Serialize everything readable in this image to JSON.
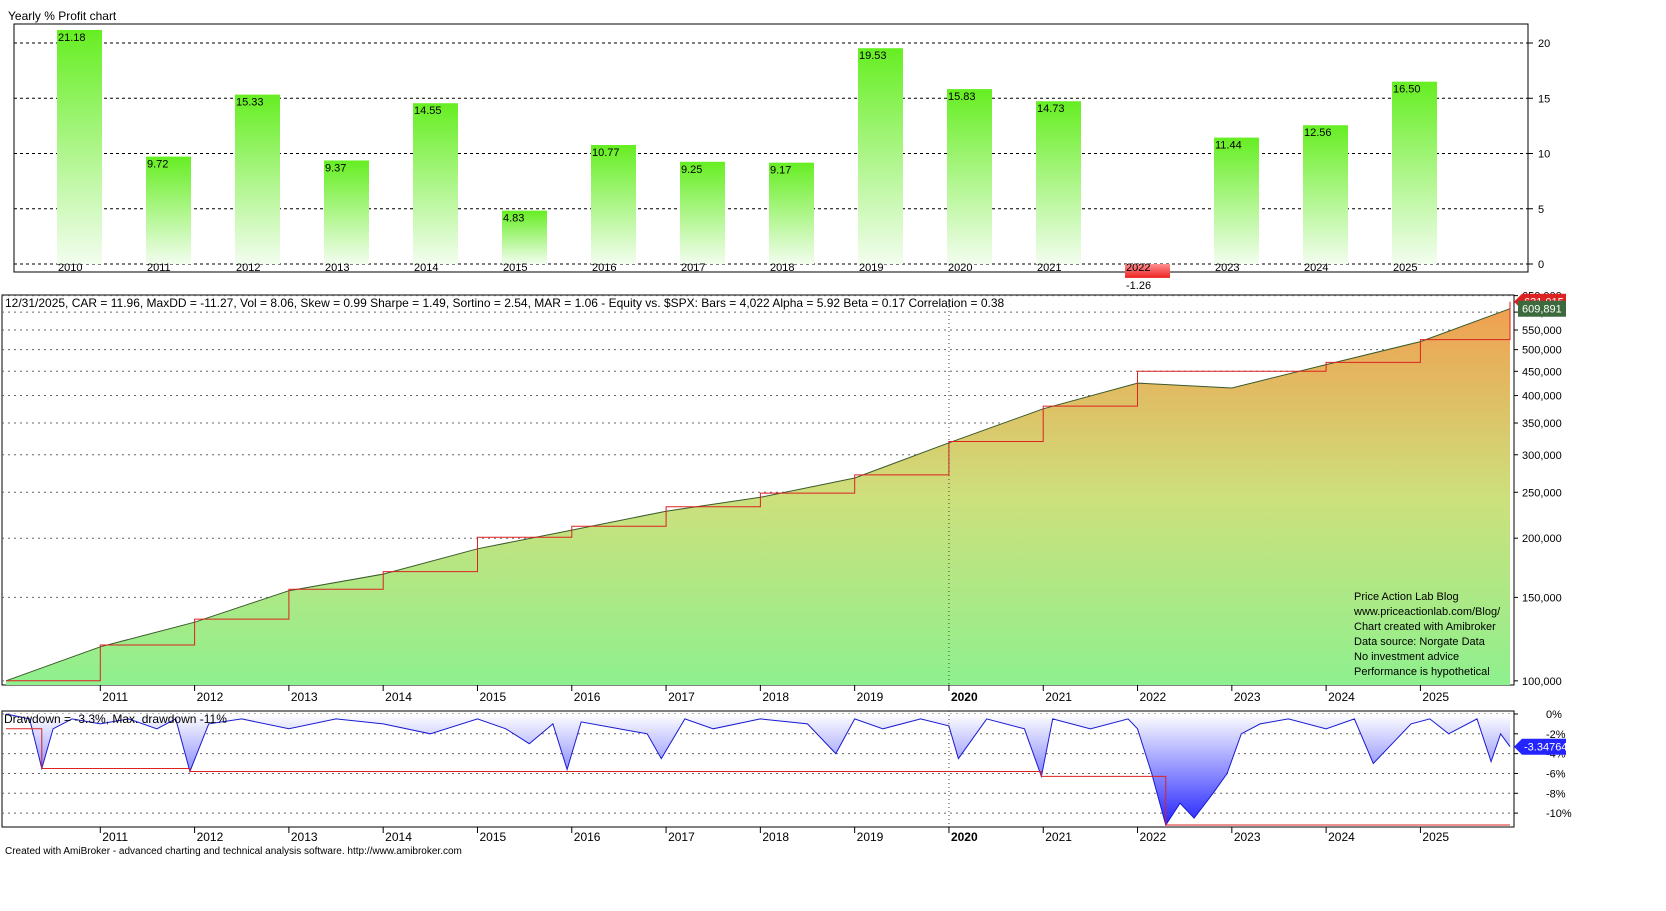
{
  "profit_panel": {
    "title": "Yearly % Profit chart"
  },
  "equity_panel": {
    "title": "12/31/2025, CAR = 11.96, MaxDD = -11.27, Vol = 8.06, Skew = 0.99 Sharpe = 1.49, Sortino = 2.54, MAR = 1.06 - Equity vs. $SPX:  Bars = 4,022 Alpha = 5.92 Beta = 0.17 Correlation = 0.38",
    "notes": [
      "Price Action Lab Blog",
      "www.priceactionlab.com/Blog/",
      "Chart created with Amibroker",
      "Data source: Norgate Data",
      "No investment advice",
      "Performance is hypothetical"
    ]
  },
  "drawdown_panel": {
    "title": "Drawdown = -3.3%, Max. drawdown -11%"
  },
  "footer": {
    "text": "Created with AmiBroker - advanced charting and technical analysis software. http://www.amibroker.com"
  },
  "colors": {
    "positive_bar": "#66ee22",
    "negative_bar": "#ee2222",
    "max_equity": "#dd2222",
    "drawdown_line": "#1a1ad0",
    "grid": "#000000"
  },
  "chart_data": [
    {
      "type": "bar",
      "title": "Yearly % Profit chart",
      "categories": [
        "2010",
        "2011",
        "2012",
        "2013",
        "2014",
        "2015",
        "2016",
        "2017",
        "2018",
        "2019",
        "2020",
        "2021",
        "2022",
        "2023",
        "2024",
        "2025"
      ],
      "values": [
        21.18,
        9.72,
        15.33,
        9.37,
        14.55,
        4.83,
        10.77,
        9.25,
        9.17,
        19.53,
        15.83,
        14.73,
        -1.26,
        11.44,
        12.56,
        16.5
      ],
      "labels": [
        "21.18",
        "9.72",
        "15.33",
        "9.37",
        "14.55",
        "4.83",
        "10.77",
        "9.25",
        "9.17",
        "19.53",
        "15.83",
        "14.73",
        "-1.26",
        "11.44",
        "12.56",
        "16.50"
      ],
      "yticks": [
        0,
        5,
        10,
        15,
        20
      ],
      "ylim": [
        -1,
        21
      ],
      "grid": true
    },
    {
      "type": "area",
      "title": "12/31/2025, CAR = 11.96, MaxDD = -11.27, Vol = 8.06, Skew = 0.99 Sharpe = 1.49, Sortino = 2.54, MAR = 1.06 - Equity vs. $SPX:  Bars = 4,022 Alpha = 5.92 Beta = 0.17 Correlation = 0.38",
      "scale": "log",
      "x": [
        2010.0,
        2011.0,
        2012.0,
        2013.0,
        2014.0,
        2015.0,
        2016.0,
        2017.0,
        2018.0,
        2019.0,
        2020.0,
        2021.0,
        2022.0,
        2023.0,
        2024.0,
        2025.0,
        2025.95
      ],
      "series": [
        {
          "name": "Equity",
          "values": [
            100000,
            118000,
            133000,
            155000,
            168000,
            190000,
            208000,
            228000,
            244000,
            268000,
            318000,
            375000,
            425000,
            415000,
            465000,
            520000,
            609891
          ]
        },
        {
          "name": "Max equity",
          "values": [
            100000,
            119000,
            135000,
            156000,
            170000,
            201000,
            212000,
            233000,
            249000,
            272000,
            320000,
            380000,
            450000,
            450000,
            470000,
            525000,
            631015
          ]
        }
      ],
      "last_value_labels": [
        "631,015",
        "609,891"
      ],
      "yticks": [
        "100,000",
        "150,000",
        "200,000",
        "250,000",
        "300,000",
        "350,000",
        "400,000",
        "450,000",
        "500,000",
        "550,000",
        "600,000",
        "650,000"
      ],
      "ytick_values": [
        100000,
        150000,
        200000,
        250000,
        300000,
        350000,
        400000,
        450000,
        500000,
        550000,
        600000,
        650000
      ],
      "ylim": [
        98000,
        652000
      ],
      "xticks": [
        "2011",
        "2012",
        "2013",
        "2014",
        "2015",
        "2016",
        "2017",
        "2018",
        "2019",
        "2020",
        "2021",
        "2022",
        "2023",
        "2024",
        "2025"
      ]
    },
    {
      "type": "area",
      "title": "Drawdown = -3.3%, Max. drawdown -11%",
      "x": [
        2010.0,
        2010.25,
        2010.38,
        2010.5,
        2010.7,
        2011.0,
        2011.3,
        2011.6,
        2011.8,
        2011.95,
        2012.15,
        2012.5,
        2013.0,
        2013.5,
        2014.0,
        2014.5,
        2015.0,
        2015.3,
        2015.55,
        2015.8,
        2015.95,
        2016.1,
        2016.5,
        2016.8,
        2016.95,
        2017.2,
        2017.5,
        2018.0,
        2018.5,
        2018.8,
        2019.0,
        2019.3,
        2019.7,
        2020.0,
        2020.1,
        2020.4,
        2020.8,
        2020.98,
        2021.1,
        2021.5,
        2021.9,
        2022.0,
        2022.15,
        2022.3,
        2022.45,
        2022.6,
        2022.8,
        2022.95,
        2023.1,
        2023.3,
        2023.6,
        2024.0,
        2024.3,
        2024.5,
        2024.9,
        2025.1,
        2025.3,
        2025.6,
        2025.75,
        2025.85,
        2025.95
      ],
      "series": [
        {
          "name": "Drawdown",
          "values": [
            0,
            -0.5,
            -5.5,
            -1.5,
            -0.5,
            -1.0,
            -0.5,
            -1.5,
            -0.5,
            -5.8,
            -1.0,
            -0.5,
            -1.5,
            -0.5,
            -1.0,
            -2.0,
            -0.5,
            -1.5,
            -3.0,
            -1.0,
            -5.6,
            -0.8,
            -1.5,
            -2.0,
            -4.5,
            -0.5,
            -1.5,
            -0.5,
            -1.0,
            -4.0,
            -0.5,
            -1.5,
            -0.5,
            -1.2,
            -4.5,
            -0.5,
            -1.5,
            -6.3,
            -0.5,
            -1.5,
            -0.5,
            -1.5,
            -6.0,
            -11.2,
            -9.0,
            -10.5,
            -8.0,
            -6.0,
            -2.0,
            -1.0,
            -0.5,
            -1.5,
            -0.5,
            -5.0,
            -1.0,
            -0.5,
            -2.0,
            -0.5,
            -4.8,
            -2.0,
            -3.3
          ]
        },
        {
          "name": "Max. drawdown",
          "values": [
            -1.5,
            -1.5,
            -5.5,
            -5.5,
            -5.5,
            -5.5,
            -5.5,
            -5.5,
            -5.5,
            -5.8,
            -5.8,
            -5.8,
            -5.8,
            -5.8,
            -5.8,
            -5.8,
            -5.8,
            -5.8,
            -5.8,
            -5.8,
            -5.8,
            -5.8,
            -5.8,
            -5.8,
            -5.8,
            -5.8,
            -5.8,
            -5.8,
            -5.8,
            -5.8,
            -5.8,
            -5.8,
            -5.8,
            -5.8,
            -5.8,
            -5.8,
            -5.8,
            -6.3,
            -6.3,
            -6.3,
            -6.3,
            -6.3,
            -6.3,
            -11.2,
            -11.2,
            -11.2,
            -11.2,
            -11.2,
            -11.2,
            -11.2,
            -11.2,
            -11.2,
            -11.2,
            -11.2,
            -11.2,
            -11.2,
            -11.2,
            -11.2,
            -11.2,
            -11.2,
            -11.2
          ]
        }
      ],
      "last_value_label": "-3.34764",
      "yticks": [
        "0%",
        "-2%",
        "-4%",
        "-6%",
        "-8%",
        "-10%"
      ],
      "ytick_values": [
        0,
        -2,
        -4,
        -6,
        -8,
        -10
      ],
      "ylim": [
        -11.4,
        0.3
      ],
      "xticks": [
        "2011",
        "2012",
        "2013",
        "2014",
        "2015",
        "2016",
        "2017",
        "2018",
        "2019",
        "2020",
        "2021",
        "2022",
        "2023",
        "2024",
        "2025"
      ]
    }
  ]
}
